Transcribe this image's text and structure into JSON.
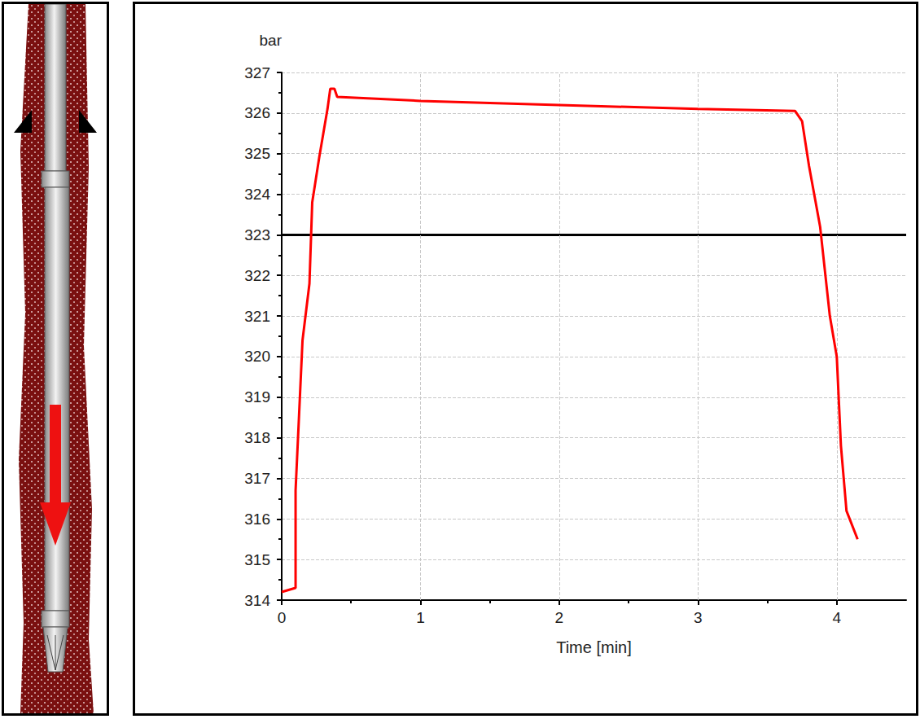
{
  "chart_data": {
    "type": "line",
    "y_label": "bar",
    "x_label": "Time [min]",
    "x": [
      0,
      0.1,
      0.1,
      0.15,
      0.2,
      0.22,
      0.27,
      0.3,
      0.33,
      0.35,
      0.38,
      0.4,
      1,
      2,
      3,
      3.7,
      3.75,
      3.8,
      3.88,
      3.95,
      4.0,
      4.03,
      4.07,
      4.15
    ],
    "values": [
      314.2,
      314.3,
      316.7,
      320.4,
      321.8,
      323.8,
      324.9,
      325.5,
      326.1,
      326.6,
      326.6,
      326.4,
      326.3,
      326.2,
      326.1,
      326.05,
      325.8,
      324.7,
      323.2,
      321.0,
      320.0,
      317.8,
      316.2,
      315.5
    ],
    "color": "#ff0000",
    "xlim": [
      0,
      4.5
    ],
    "xticks": [
      0,
      1,
      2,
      3,
      4
    ],
    "ylim": [
      314,
      327
    ],
    "yticks": [
      314,
      315,
      316,
      317,
      318,
      319,
      320,
      321,
      322,
      323,
      324,
      325,
      326,
      327
    ],
    "grid": true,
    "reference_line": 323
  }
}
